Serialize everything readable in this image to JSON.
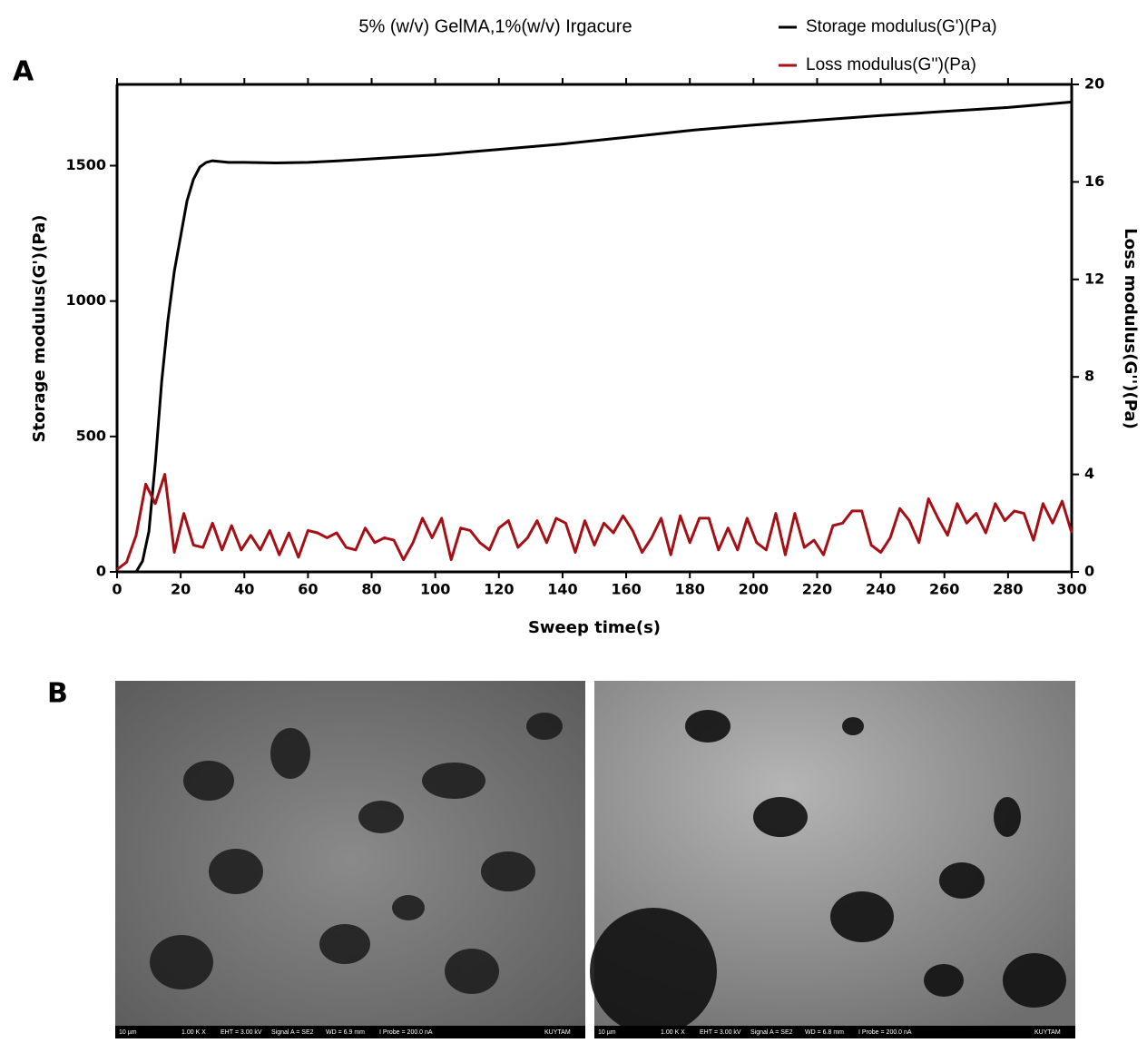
{
  "chart_data": {
    "type": "line",
    "title": "5% (w/v) GelMA,1%(w/v) Irgacure",
    "x_label": "Sweep time(s)",
    "y_label": "Storage modulus(G')(Pa)",
    "y2_label": "Loss modulus(G'')(Pa)",
    "xlim": [
      0,
      300
    ],
    "xticks": [
      0,
      20,
      40,
      60,
      80,
      100,
      120,
      140,
      160,
      180,
      200,
      220,
      240,
      260,
      280,
      300
    ],
    "ylim": [
      0,
      1800
    ],
    "yticks": [
      0,
      500,
      1000,
      1500
    ],
    "y2lim": [
      0,
      20
    ],
    "y2ticks": [
      0,
      4,
      8,
      12,
      16,
      20
    ],
    "legend": "top-right",
    "series": [
      {
        "name": "Storage modulus(G')(Pa)",
        "color": "#000000",
        "x": [
          0,
          6,
          8,
          10,
          12,
          14,
          16,
          18,
          20,
          22,
          24,
          26,
          28,
          30,
          35,
          40,
          50,
          60,
          70,
          80,
          100,
          120,
          140,
          160,
          180,
          200,
          220,
          240,
          260,
          280,
          300
        ],
        "values": [
          0,
          0,
          40,
          150,
          400,
          700,
          930,
          1110,
          1240,
          1370,
          1450,
          1495,
          1512,
          1518,
          1512,
          1512,
          1510,
          1512,
          1518,
          1525,
          1540,
          1560,
          1580,
          1605,
          1630,
          1650,
          1668,
          1685,
          1700,
          1715,
          1735
        ]
      },
      {
        "name": "Loss modulus(G'')(Pa)",
        "color": "#a50f15",
        "axis": "y2",
        "x": [
          0,
          3,
          6,
          9,
          12,
          15,
          18,
          21,
          24,
          27,
          30,
          33,
          36,
          39,
          42,
          45,
          48,
          51,
          54,
          57,
          60,
          63,
          66,
          69,
          72,
          75,
          78,
          81,
          84,
          87,
          90,
          93,
          96,
          99,
          102,
          105,
          108,
          111,
          114,
          117,
          120,
          123,
          126,
          129,
          132,
          135,
          138,
          141,
          144,
          147,
          150,
          153,
          156,
          159,
          162,
          165,
          168,
          171,
          174,
          177,
          180,
          183,
          186,
          189,
          192,
          195,
          198,
          201,
          204,
          207,
          210,
          213,
          216,
          219,
          222,
          225,
          228,
          231,
          234,
          237,
          240,
          243,
          246,
          249,
          252,
          255,
          258,
          261,
          264,
          267,
          270,
          273,
          276,
          279,
          282,
          285,
          288,
          291,
          294,
          297,
          300
        ],
        "values": [
          0.1,
          0.4,
          1.5,
          3.6,
          2.8,
          4.0,
          0.8,
          2.4,
          1.1,
          1.0,
          2.0,
          0.9,
          1.9,
          0.9,
          1.5,
          0.9,
          1.7,
          0.7,
          1.6,
          0.6,
          1.7,
          1.6,
          1.4,
          1.6,
          1.0,
          0.9,
          1.8,
          1.2,
          1.4,
          1.3,
          0.5,
          1.2,
          2.2,
          1.4,
          2.2,
          0.5,
          1.8,
          1.7,
          1.2,
          0.9,
          1.8,
          2.1,
          1.0,
          1.4,
          2.1,
          1.2,
          2.2,
          2.0,
          0.8,
          2.1,
          1.1,
          2.0,
          1.6,
          2.3,
          1.7,
          0.8,
          1.4,
          2.2,
          0.7,
          2.3,
          1.2,
          2.2,
          2.2,
          0.9,
          1.8,
          0.9,
          2.2,
          1.2,
          0.9,
          2.4,
          0.7,
          2.4,
          1.0,
          1.3,
          0.7,
          1.9,
          2.0,
          2.5,
          2.5,
          1.1,
          0.8,
          1.4,
          2.6,
          2.1,
          1.2,
          3.0,
          2.2,
          1.5,
          2.8,
          2.0,
          2.4,
          1.6,
          2.8,
          2.1,
          2.5,
          2.4,
          1.3,
          2.8,
          2.0,
          2.9,
          1.6
        ]
      }
    ]
  },
  "figure": {
    "panel_labels": [
      "A",
      "B"
    ],
    "images": [
      {
        "footer": [
          "10 µm",
          "1.00 K X",
          "EHT = 3.00 kV",
          "Signal A = SE2",
          "WD = 6.9 mm",
          "I Probe = 200.0 nA",
          "KUYTAM"
        ]
      },
      {
        "footer": [
          "10 µm",
          "1.00 K X",
          "EHT = 3.00 kV",
          "Signal A = SE2",
          "WD = 6.8 mm",
          "I Probe = 200.0 nA",
          "KUYTAM"
        ]
      }
    ]
  }
}
